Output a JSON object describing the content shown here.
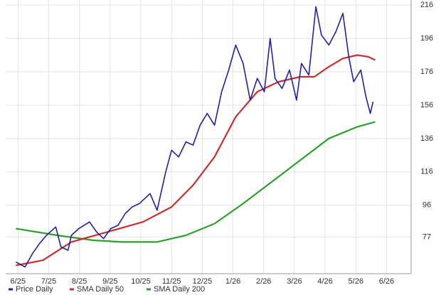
{
  "chart_data": {
    "type": "line",
    "xlim": [
      -0.4,
      12.8
    ],
    "ylim": [
      55,
      219
    ],
    "xticks": [
      {
        "value": 0,
        "label": "6/25"
      },
      {
        "value": 1,
        "label": "7/25"
      },
      {
        "value": 2,
        "label": "8/25"
      },
      {
        "value": 3,
        "label": "9/25"
      },
      {
        "value": 4,
        "label": "10/25"
      },
      {
        "value": 5,
        "label": "11/25"
      },
      {
        "value": 6,
        "label": "12/25"
      },
      {
        "value": 7,
        "label": "1/26"
      },
      {
        "value": 8,
        "label": "2/26"
      },
      {
        "value": 9,
        "label": "3/26"
      },
      {
        "value": 10,
        "label": "4/26"
      },
      {
        "value": 11,
        "label": "5/26"
      },
      {
        "value": 12,
        "label": "6/26"
      }
    ],
    "yticks": [
      77,
      96,
      116,
      136,
      156,
      176,
      196,
      216
    ],
    "grid": true,
    "legend": "bottom",
    "series": [
      {
        "name": "Price Daily",
        "color": "#2020a8",
        "x": [
          -0.07,
          0.23,
          0.47,
          0.7,
          0.93,
          1.23,
          1.4,
          1.63,
          1.74,
          1.98,
          2.33,
          2.56,
          2.79,
          3.02,
          3.26,
          3.49,
          3.72,
          3.95,
          4.3,
          4.53,
          4.81,
          5.0,
          5.23,
          5.47,
          5.7,
          5.93,
          6.16,
          6.4,
          6.63,
          6.86,
          7.09,
          7.33,
          7.56,
          7.79,
          8.02,
          8.21,
          8.37,
          8.6,
          8.84,
          9.07,
          9.23,
          9.47,
          9.7,
          9.88,
          10.12,
          10.35,
          10.58,
          10.77,
          10.93,
          11.16,
          11.33,
          11.47,
          11.56
        ],
        "values": [
          62,
          59,
          67,
          73,
          78,
          83,
          71,
          69,
          78,
          82,
          86,
          80,
          76,
          82,
          84,
          91,
          95,
          97,
          103,
          93,
          116,
          129,
          125,
          134,
          132,
          144,
          151,
          144,
          164,
          177,
          192,
          181,
          159,
          172,
          164,
          196,
          172,
          166,
          177,
          159,
          181,
          174,
          215,
          198,
          192,
          200,
          211,
          185,
          170,
          177,
          161,
          151,
          158
        ]
      },
      {
        "name": "SMA Daily 50",
        "color": "#c83030",
        "x": [
          -0.07,
          0.81,
          1.74,
          2.91,
          4.07,
          5.0,
          5.7,
          6.4,
          7.09,
          7.79,
          8.49,
          9.19,
          9.65,
          10.12,
          10.58,
          11.05,
          11.4,
          11.63
        ],
        "values": [
          60,
          63,
          74,
          80,
          86,
          95,
          108,
          125,
          149,
          164,
          170,
          173,
          173,
          179,
          184,
          186,
          185,
          183
        ]
      },
      {
        "name": "SMA Daily 200",
        "color": "#2e9e2e",
        "x": [
          -0.07,
          1.28,
          2.44,
          3.37,
          4.53,
          5.47,
          6.4,
          7.33,
          8.26,
          9.19,
          10.12,
          11.05,
          11.63
        ],
        "values": [
          82,
          78,
          75,
          74,
          74,
          78,
          85,
          97,
          110,
          123,
          136,
          143,
          146
        ]
      }
    ]
  }
}
